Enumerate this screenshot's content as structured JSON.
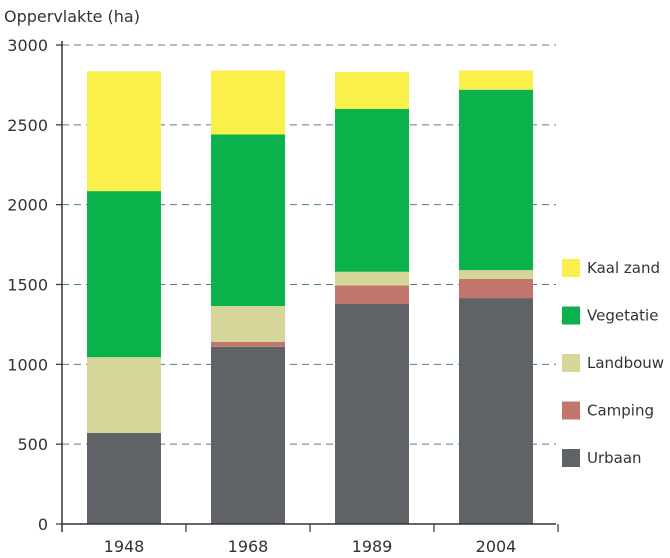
{
  "chart_data": {
    "type": "bar",
    "stacked": true,
    "title": "",
    "ylabel": "Oppervlakte (ha)",
    "xlabel": "",
    "ylim": [
      0,
      3000
    ],
    "yticks": [
      0,
      500,
      1000,
      1500,
      2000,
      2500,
      3000
    ],
    "grid": "horizontal dashed",
    "legend_position": "right",
    "categories": [
      "1948",
      "1968",
      "1989",
      "2004"
    ],
    "series": [
      {
        "name": "Urbaan",
        "color": "#5f6266",
        "values": [
          570,
          1110,
          1380,
          1415
        ]
      },
      {
        "name": "Camping",
        "color": "#c2756a",
        "values": [
          0,
          30,
          115,
          120
        ]
      },
      {
        "name": "Landbouw",
        "color": "#d6d59a",
        "values": [
          475,
          225,
          85,
          55
        ]
      },
      {
        "name": "Vegetatie",
        "color": "#0bb14a",
        "values": [
          1040,
          1075,
          1020,
          1130
        ]
      },
      {
        "name": "Kaal zand",
        "color": "#fbef4a",
        "values": [
          750,
          400,
          230,
          120
        ]
      }
    ],
    "legend_order": [
      "Kaal zand",
      "Vegetatie",
      "Landbouw",
      "Camping",
      "Urbaan"
    ]
  }
}
